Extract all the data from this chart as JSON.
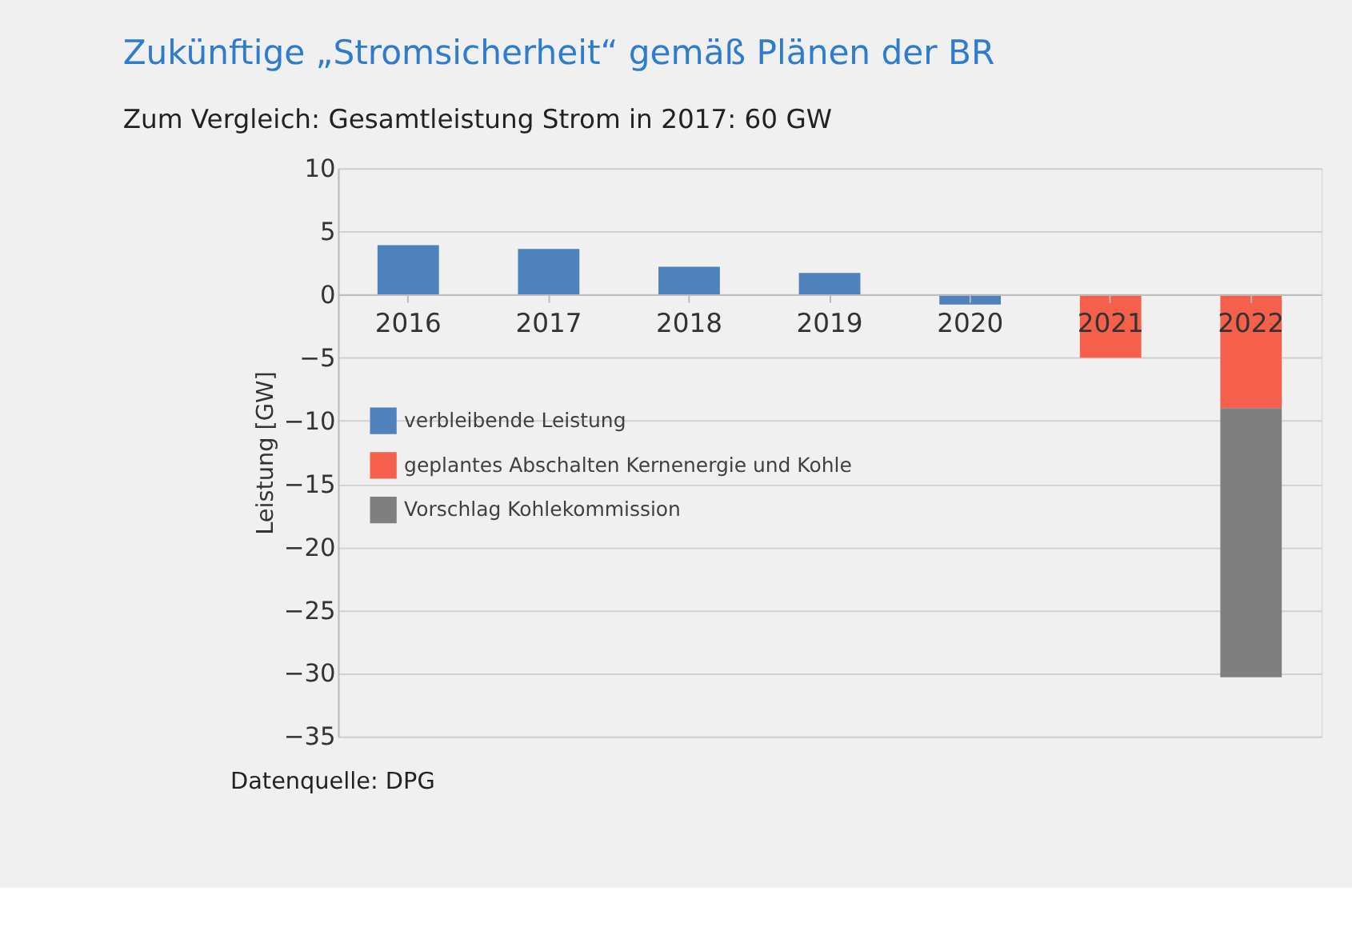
{
  "chart_data": {
    "type": "bar",
    "title": "Zukünftige „Stromsicherheit“ gemäß Plänen der BR",
    "subtitle": "Zum Vergleich: Gesamtleistung Strom in 2017: 60 GW",
    "ylabel": "Leistung [GW]",
    "annotations": [
      "Datenquelle: DPG"
    ],
    "categories": [
      "2016",
      "2017",
      "2018",
      "2019",
      "2020",
      "2021",
      "2022"
    ],
    "stacked": true,
    "series": [
      {
        "name": "verbleibende Leistung",
        "color": "#4f81bd",
        "values": [
          3.9,
          3.6,
          2.2,
          1.7,
          -0.8,
          null,
          null
        ]
      },
      {
        "name": "geplantes Abschalten Kernenergie und Kohle",
        "color": "#f4604b",
        "values": [
          null,
          null,
          null,
          null,
          null,
          -5.0,
          -9.0
        ]
      },
      {
        "name": "Vorschlag Kohlekommission",
        "color": "#7f7f7f",
        "values": [
          null,
          null,
          null,
          null,
          null,
          null,
          -21.3
        ]
      }
    ],
    "ylim": [
      -35,
      10
    ],
    "yticks": [
      -35,
      -30,
      -25,
      -20,
      -15,
      -10,
      -5,
      0,
      5,
      10
    ],
    "grid": "y",
    "legend": "left"
  }
}
